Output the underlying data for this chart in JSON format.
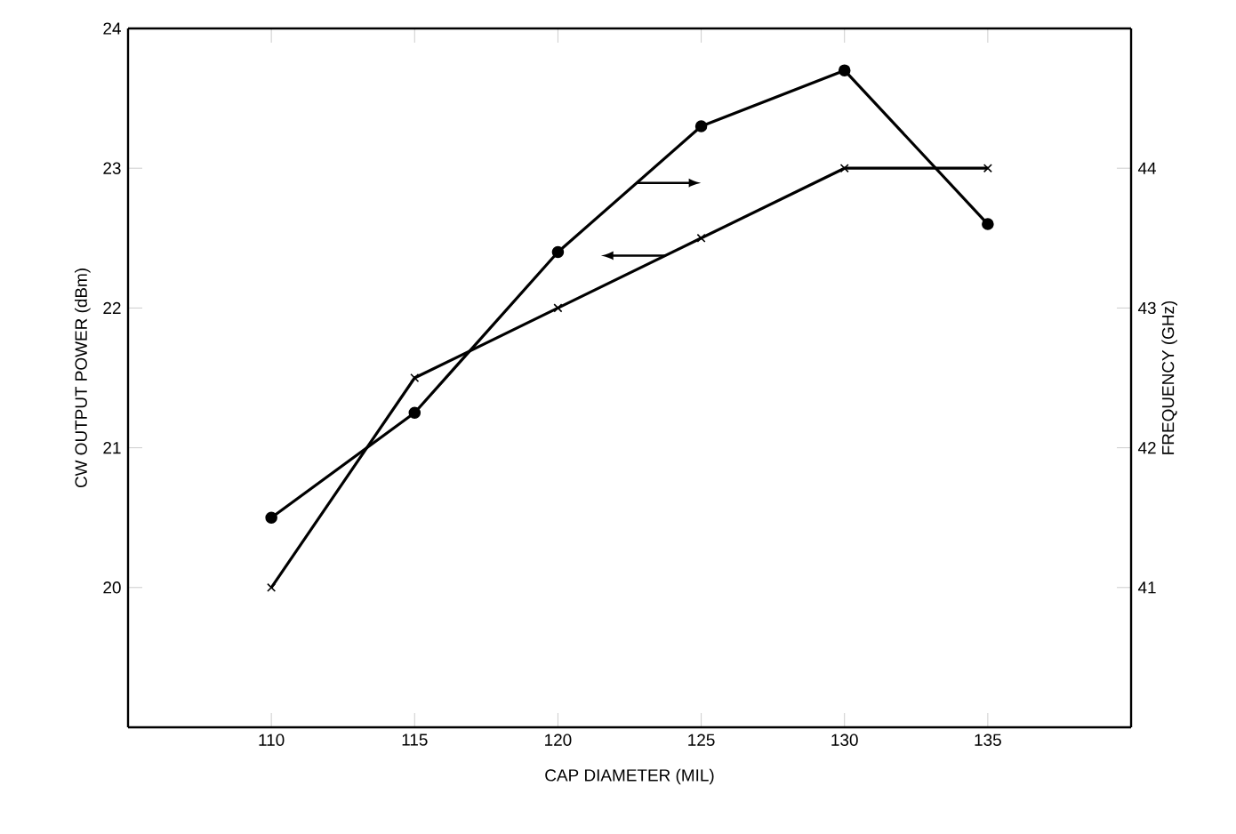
{
  "chart_data": {
    "type": "line",
    "xlabel": "CAP DIAMETER (MIL)",
    "ylabel": "CW OUTPUT POWER (dBm)",
    "y2label": "FREQUENCY (GHz)",
    "x": [
      110,
      115,
      120,
      125,
      130,
      135
    ],
    "series": [
      {
        "color": "#000000",
        "values": [
          20.0,
          21.5,
          22.0,
          22.5,
          23.0,
          23.0
        ],
        "marker": "cross"
      },
      {
        "color": "#000000",
        "values": [
          41.5,
          42.25,
          43.4,
          44.3,
          44.7,
          43.6
        ],
        "marker": "circle",
        "axis": "y2"
      }
    ],
    "xlim": [
      105,
      140
    ],
    "xticks": [
      110,
      115,
      120,
      125,
      130,
      135
    ],
    "ylim": [
      19,
      24
    ],
    "yticks": [
      20,
      21,
      22,
      23,
      24
    ],
    "y2lim": [
      40,
      45
    ],
    "y2ticks": [
      41,
      42,
      43,
      44
    ],
    "line_style": "solid"
  }
}
